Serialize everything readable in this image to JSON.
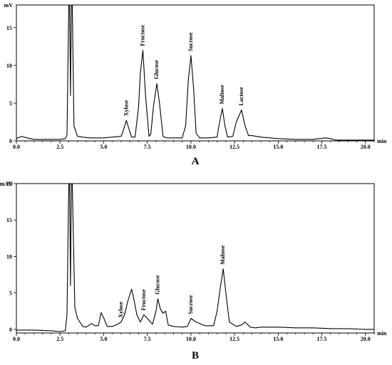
{
  "chart_data": [
    {
      "type": "line",
      "panel_label": "A",
      "x_unit": "min",
      "y_unit": "mV",
      "xlim": [
        0,
        20.5
      ],
      "ylim": [
        0,
        18
      ],
      "x_ticks": [
        "0.0",
        "2.5",
        "5.0",
        "7.5",
        "10.0",
        "12.5",
        "15.0",
        "17.5",
        "20.0"
      ],
      "y_ticks": [
        "0",
        "5",
        "10",
        "15"
      ],
      "grid": false,
      "series": [
        {
          "x": [
            0,
            0.3,
            0.6,
            1.0,
            1.5,
            2.0,
            2.5,
            2.8,
            2.9,
            3.0,
            3.05,
            3.1,
            3.15,
            3.2,
            3.3,
            3.5,
            3.8,
            4.2,
            5.0,
            5.5,
            6.0,
            6.1,
            6.3,
            6.45,
            6.6,
            6.8,
            7.0,
            7.1,
            7.25,
            7.4,
            7.6,
            7.7,
            7.85,
            8.05,
            8.2,
            8.4,
            8.6,
            9.0,
            9.5,
            9.7,
            9.85,
            10.0,
            10.15,
            10.3,
            10.5,
            11.0,
            11.5,
            11.6,
            11.8,
            11.95,
            12.1,
            12.4,
            12.6,
            12.9,
            13.1,
            13.3,
            13.5,
            14.0,
            15.0,
            16.0,
            17.0,
            17.7,
            18.0,
            18.3,
            19.0,
            20.0,
            20.5
          ],
          "y": [
            0.3,
            0.6,
            0.4,
            0.2,
            0.2,
            0.2,
            0.2,
            0.3,
            0.8,
            18,
            18,
            6,
            18,
            18,
            2.0,
            0.6,
            0.5,
            0.4,
            0.4,
            0.5,
            0.6,
            1.2,
            2.7,
            1.6,
            0.5,
            0.5,
            4.5,
            9.0,
            12.0,
            6.0,
            0.6,
            0.9,
            4.5,
            7.6,
            5.0,
            0.6,
            0.4,
            0.4,
            0.4,
            2.0,
            8.0,
            11.3,
            7.0,
            1.0,
            0.4,
            0.4,
            0.5,
            2.0,
            4.3,
            2.0,
            0.5,
            0.6,
            2.5,
            4.1,
            2.0,
            0.7,
            0.7,
            0.5,
            0.3,
            0.2,
            0.2,
            0.4,
            0.3,
            0.1,
            0.1,
            0.1,
            0.1
          ]
        }
      ],
      "annotations": [
        {
          "text": "Xylose",
          "x": 6.3,
          "y": 2.7
        },
        {
          "text": "Fructose",
          "x": 7.25,
          "y": 12.0
        },
        {
          "text": "Glucose",
          "x": 8.05,
          "y": 7.6
        },
        {
          "text": "Sucrose",
          "x": 10.0,
          "y": 11.3
        },
        {
          "text": "Maltose",
          "x": 11.8,
          "y": 4.3
        },
        {
          "text": "Lactose",
          "x": 12.9,
          "y": 4.1
        }
      ]
    },
    {
      "type": "line",
      "panel_label": "B",
      "x_unit": "min",
      "y_unit": "mAU",
      "xlim": [
        0,
        20.5
      ],
      "ylim": [
        -0.5,
        20
      ],
      "x_ticks": [
        "0.0",
        "2.5",
        "5.0",
        "7.5",
        "10.0",
        "12.5",
        "15.0",
        "17.5",
        "20.0"
      ],
      "y_ticks": [
        "0",
        "5",
        "10",
        "15",
        "20"
      ],
      "grid": false,
      "series": [
        {
          "x": [
            0,
            1.0,
            2.0,
            2.5,
            2.8,
            2.9,
            3.0,
            3.05,
            3.1,
            3.15,
            3.2,
            3.35,
            3.5,
            3.8,
            4.0,
            4.3,
            4.5,
            4.7,
            4.85,
            5.0,
            5.2,
            5.5,
            5.8,
            6.0,
            6.2,
            6.4,
            6.6,
            6.7,
            6.9,
            7.1,
            7.3,
            7.5,
            7.8,
            8.0,
            8.1,
            8.25,
            8.4,
            8.55,
            8.7,
            9.0,
            9.5,
            9.8,
            10.0,
            10.3,
            10.8,
            11.3,
            11.5,
            11.7,
            11.85,
            12.0,
            12.2,
            12.6,
            12.9,
            13.1,
            13.4,
            13.7,
            14.0,
            15.0,
            16.0,
            17.0,
            18.0,
            19.0,
            20.0,
            20.5
          ],
          "y": [
            -0.1,
            -0.1,
            -0.2,
            -0.3,
            -0.2,
            2,
            20,
            20,
            6,
            20,
            20,
            3,
            1.5,
            0.4,
            0.3,
            0.8,
            0.5,
            0.5,
            2.3,
            1.6,
            0.4,
            0.4,
            0.7,
            1.0,
            2.0,
            4.0,
            5.5,
            4.5,
            2.0,
            1.0,
            2.0,
            1.5,
            0.7,
            2.5,
            4.2,
            2.8,
            2.2,
            2.5,
            0.6,
            0.4,
            0.3,
            0.4,
            1.5,
            1.0,
            0.5,
            0.5,
            2.5,
            6.0,
            8.3,
            5.0,
            1.0,
            0.4,
            0.6,
            1.0,
            0.3,
            0.2,
            0.3,
            0.3,
            0.2,
            0.2,
            0.1,
            0.1,
            0.0,
            0.0
          ]
        }
      ],
      "annotations": [
        {
          "text": "Xylose",
          "x": 6.0,
          "y": 1.0
        },
        {
          "text": "Fructose",
          "x": 7.3,
          "y": 2.0
        },
        {
          "text": "Glucose",
          "x": 8.1,
          "y": 4.2
        },
        {
          "text": "Sucrose",
          "x": 10.0,
          "y": 1.5
        },
        {
          "text": "Maltose",
          "x": 11.85,
          "y": 8.3
        }
      ]
    }
  ]
}
